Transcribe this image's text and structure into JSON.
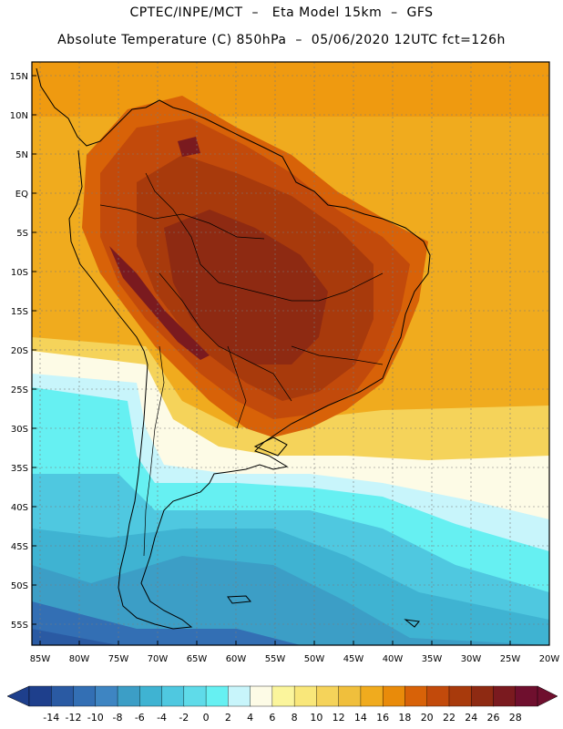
{
  "header": {
    "line1": "CPTEC/INPE/MCT  –   Eta Model 15km  –  GFS",
    "line2": "Absolute Temperature (C) 850hPa  –  05/06/2020 12UTC fct=126h"
  },
  "map": {
    "lat_labels": [
      "15N",
      "10N",
      "5N",
      "EQ",
      "5S",
      "10S",
      "15S",
      "20S",
      "25S",
      "30S",
      "35S",
      "40S",
      "45S",
      "50S",
      "55S"
    ],
    "lon_labels": [
      "85W",
      "80W",
      "75W",
      "70W",
      "65W",
      "60W",
      "55W",
      "50W",
      "45W",
      "40W",
      "35W",
      "30W",
      "25W",
      "20W"
    ],
    "lat_range": [
      -57.5,
      16.5
    ],
    "lon_range": [
      -85.5,
      -19.5
    ],
    "gridlines": "dotted"
  },
  "colorbar": {
    "tick_labels": [
      "-14",
      "-12",
      "-10",
      "-8",
      "-6",
      "-4",
      "-2",
      "0",
      "2",
      "4",
      "6",
      "8",
      "10",
      "12",
      "14",
      "16",
      "18",
      "20",
      "22",
      "24",
      "26",
      "28"
    ],
    "colors": [
      "#1e3f8c",
      "#2a5aa3",
      "#336fb4",
      "#3e85c2",
      "#3c9ec6",
      "#3fb3d2",
      "#4fc8e0",
      "#5fdbe9",
      "#66f0f2",
      "#c8f5fb",
      "#fdfbe6",
      "#fbf59c",
      "#f9e77a",
      "#f5d35a",
      "#f0bf3c",
      "#f0ab1e",
      "#e98b0a",
      "#d86208",
      "#c24a0b",
      "#a83a0c",
      "#8e2a12",
      "#7a1a1f",
      "#6f0f2e"
    ]
  }
}
